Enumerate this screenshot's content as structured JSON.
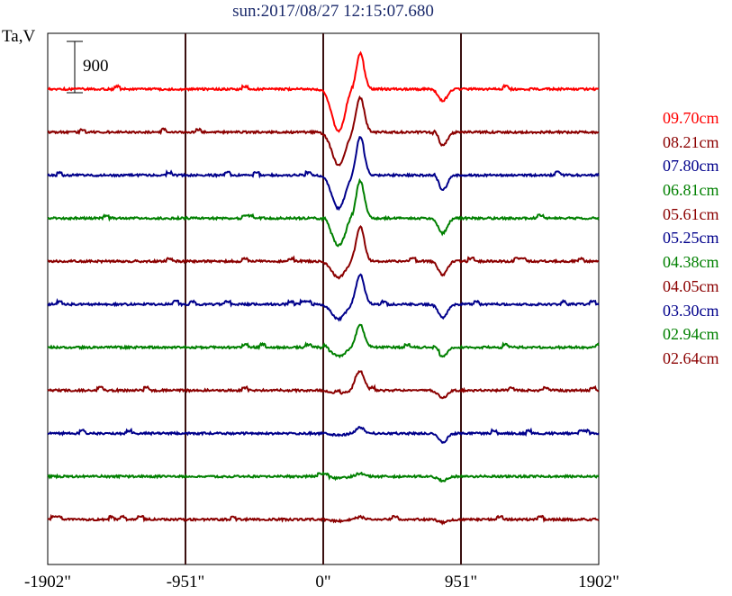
{
  "title": "sun:2017/08/27 12:15:07.680",
  "chart_data": {
    "type": "line",
    "title": "sun:2017/08/27 12:15:07.680",
    "ylabel": "Ta,V",
    "xlabel": "",
    "scale_bar": "900",
    "x_ticks": [
      {
        "value": -1902,
        "label": "-1902\""
      },
      {
        "value": -951,
        "label": "-951\""
      },
      {
        "value": 0,
        "label": "0\""
      },
      {
        "value": 951,
        "label": "951\""
      },
      {
        "value": 1902,
        "label": "1902\""
      }
    ],
    "xlim": [
      -1902,
      1902
    ],
    "vertical_grid_at": [
      -951,
      0,
      951
    ],
    "grid": false,
    "legend_position": "right",
    "colors": {
      "red": "#ff0000",
      "maroon": "#8b0000",
      "navy": "#00008b",
      "green": "#008000"
    },
    "profile_shape": {
      "dip_x": 105,
      "peak_x": 255,
      "limb_dip_x": 825
    },
    "series": [
      {
        "name": "09.70cm",
        "color": "#ff0000",
        "baseline": 0,
        "dip": -1400,
        "peak": 1100,
        "limb_dip": -400
      },
      {
        "name": "08.21cm",
        "color": "#8b0000",
        "baseline": 0,
        "dip": -1100,
        "peak": 1150,
        "limb_dip": -450
      },
      {
        "name": "07.80cm",
        "color": "#00008b",
        "baseline": 0,
        "dip": -1100,
        "peak": 1200,
        "limb_dip": -500
      },
      {
        "name": "06.81cm",
        "color": "#008000",
        "baseline": 0,
        "dip": -900,
        "peak": 1250,
        "limb_dip": -500
      },
      {
        "name": "05.61cm",
        "color": "#8b0000",
        "baseline": 0,
        "dip": -550,
        "peak": 1150,
        "limb_dip": -450
      },
      {
        "name": "05.25cm",
        "color": "#00008b",
        "baseline": 0,
        "dip": -500,
        "peak": 1000,
        "limb_dip": -450
      },
      {
        "name": "04.38cm",
        "color": "#008000",
        "baseline": 0,
        "dip": -300,
        "peak": 750,
        "limb_dip": -300
      },
      {
        "name": "04.05cm",
        "color": "#8b0000",
        "baseline": 0,
        "dip": -120,
        "peak": 650,
        "limb_dip": -250
      },
      {
        "name": "03.30cm",
        "color": "#00008b",
        "baseline": 0,
        "dip": -60,
        "peak": 200,
        "limb_dip": -300
      },
      {
        "name": "02.94cm",
        "color": "#008000",
        "baseline": 0,
        "dip": -60,
        "peak": 100,
        "limb_dip": -150
      },
      {
        "name": "02.64cm",
        "color": "#8b0000",
        "baseline": 0,
        "dip": -50,
        "peak": 80,
        "limb_dip": -100
      }
    ]
  }
}
